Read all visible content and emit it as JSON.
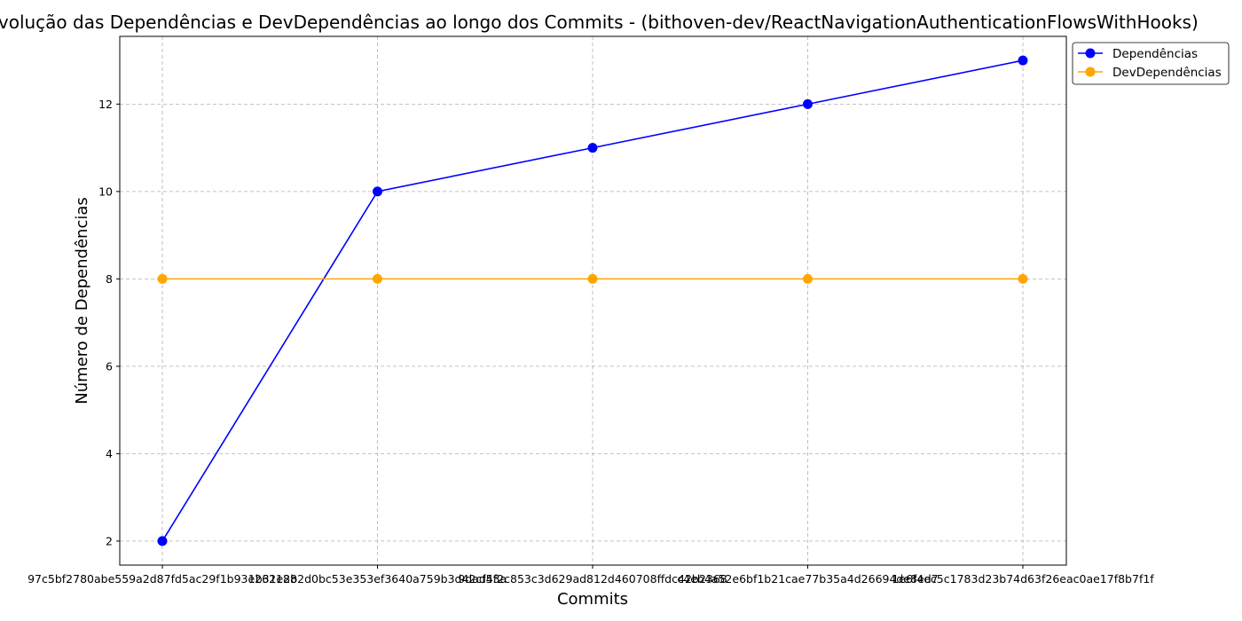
{
  "chart_data": {
    "type": "line",
    "title": "Evolução das Dependências e DevDependências ao longo dos Commits - (bithoven-dev/ReactNavigationAuthenticationFlowsWithHooks)",
    "xlabel": "Commits",
    "ylabel": "Número de Dependências",
    "categories": [
      "97c5bf2780abe559a2d87fd5ac29f1b93e262188",
      "1b31e2b2d0bc53e353ef3640a759b3d42cf53a",
      "9dad4f2c853c3d629ad812d460708ffdc42b2368",
      "c4eb4a52e6bf1b21cae77b35a4d26694de8ed7",
      "1e6f4ec5c1783d23b74d63f26eac0ae17f8b7f1f"
    ],
    "series": [
      {
        "name": "Dependências",
        "values": [
          2,
          10,
          11,
          12,
          13
        ],
        "color": "#0000ff"
      },
      {
        "name": "DevDependências",
        "values": [
          8,
          8,
          8,
          8,
          8
        ],
        "color": "#ffa500"
      }
    ],
    "yticks": [
      2,
      4,
      6,
      8,
      10,
      12
    ],
    "ylim": [
      1.45,
      13.55
    ],
    "grid": true,
    "legend": "top-right"
  }
}
